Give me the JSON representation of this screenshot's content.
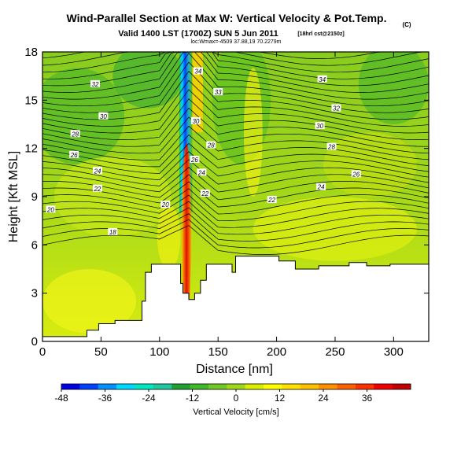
{
  "chart_data": {
    "type": "heatmap",
    "title": "Wind-Parallel Section at Max W: Vertical Velocity & Pot.Temp.",
    "title_units": "(C)",
    "subtitle": "Valid 1400 LST (1700Z) SUN 5 Jun 2011",
    "subtitle_run": "[18hrl cst@2150z]",
    "location_note": "loc:Wmax=-4509 37.88,19 70.2279m",
    "xlabel": "Distance [nm]",
    "ylabel": "Height [Kft MSL]",
    "xlim": [
      0,
      330
    ],
    "ylim": [
      0,
      18
    ],
    "xticks": [
      "0",
      "50",
      "100",
      "150",
      "200",
      "250",
      "300"
    ],
    "xtick_values": [
      0,
      50,
      100,
      150,
      200,
      250,
      300
    ],
    "yticks": [
      "0",
      "3",
      "6",
      "9",
      "12",
      "15",
      "18"
    ],
    "ytick_values": [
      0,
      3,
      6,
      9,
      12,
      15,
      18
    ],
    "colorbar": {
      "label": "Vertical Velocity [cm/s]",
      "range": [
        -48,
        48
      ],
      "ticks": [
        "-48",
        "-36",
        "-24",
        "-12",
        "0",
        "12",
        "24",
        "36"
      ],
      "tick_values": [
        -48,
        -36,
        -24,
        -12,
        0,
        12,
        24,
        36
      ],
      "colors": [
        "#0000e0",
        "#0040ff",
        "#0090ff",
        "#00d8ff",
        "#00e8c0",
        "#20c8a0",
        "#20a030",
        "#40b828",
        "#70c820",
        "#a0d818",
        "#d8f000",
        "#ffff00",
        "#ffe000",
        "#ffc000",
        "#ff9000",
        "#ff6000",
        "#ff3000",
        "#f00000",
        "#c00000"
      ]
    },
    "theta_contour_labels": [
      {
        "x": 45,
        "y": 16.0,
        "text": "32"
      },
      {
        "x": 52,
        "y": 14.0,
        "text": "30"
      },
      {
        "x": 28,
        "y": 12.9,
        "text": "28"
      },
      {
        "x": 27,
        "y": 11.6,
        "text": "26"
      },
      {
        "x": 47,
        "y": 10.6,
        "text": "24"
      },
      {
        "x": 47,
        "y": 9.5,
        "text": "22"
      },
      {
        "x": 7,
        "y": 8.2,
        "text": "20"
      },
      {
        "x": 60,
        "y": 6.8,
        "text": "18"
      },
      {
        "x": 105,
        "y": 8.5,
        "text": "20"
      },
      {
        "x": 133,
        "y": 16.8,
        "text": "34"
      },
      {
        "x": 150,
        "y": 15.5,
        "text": "33"
      },
      {
        "x": 131,
        "y": 13.7,
        "text": "30"
      },
      {
        "x": 144,
        "y": 12.2,
        "text": "28"
      },
      {
        "x": 130,
        "y": 11.3,
        "text": "26"
      },
      {
        "x": 136,
        "y": 10.5,
        "text": "24"
      },
      {
        "x": 139,
        "y": 9.2,
        "text": "22"
      },
      {
        "x": 239,
        "y": 16.3,
        "text": "34"
      },
      {
        "x": 251,
        "y": 14.5,
        "text": "32"
      },
      {
        "x": 237,
        "y": 13.4,
        "text": "30"
      },
      {
        "x": 247,
        "y": 12.1,
        "text": "28"
      },
      {
        "x": 268,
        "y": 10.4,
        "text": "26"
      },
      {
        "x": 238,
        "y": 9.6,
        "text": "24"
      },
      {
        "x": 196,
        "y": 8.8,
        "text": "22"
      }
    ],
    "terrain": [
      [
        0,
        0
      ],
      [
        0,
        0.3
      ],
      [
        38,
        0.3
      ],
      [
        38,
        0.7
      ],
      [
        48,
        0.7
      ],
      [
        48,
        1.1
      ],
      [
        62,
        1.1
      ],
      [
        62,
        1.3
      ],
      [
        85,
        1.3
      ],
      [
        85,
        2.5
      ],
      [
        88,
        2.5
      ],
      [
        88,
        4.3
      ],
      [
        93,
        4.3
      ],
      [
        93,
        4.8
      ],
      [
        118,
        4.8
      ],
      [
        118,
        3.6
      ],
      [
        120,
        3.6
      ],
      [
        120,
        3.0
      ],
      [
        125,
        3.0
      ],
      [
        125,
        2.6
      ],
      [
        130,
        2.6
      ],
      [
        130,
        3.0
      ],
      [
        135,
        3.0
      ],
      [
        135,
        3.8
      ],
      [
        140,
        3.8
      ],
      [
        140,
        4.8
      ],
      [
        162,
        4.8
      ],
      [
        162,
        4.3
      ],
      [
        165,
        4.3
      ],
      [
        165,
        5.3
      ],
      [
        202,
        5.3
      ],
      [
        202,
        5.0
      ],
      [
        216,
        5.0
      ],
      [
        216,
        4.5
      ],
      [
        236,
        4.5
      ],
      [
        236,
        4.7
      ],
      [
        262,
        4.7
      ],
      [
        262,
        4.9
      ],
      [
        277,
        4.9
      ],
      [
        277,
        4.7
      ],
      [
        297,
        4.7
      ],
      [
        297,
        4.8
      ],
      [
        330,
        4.8
      ],
      [
        330,
        0
      ]
    ]
  }
}
